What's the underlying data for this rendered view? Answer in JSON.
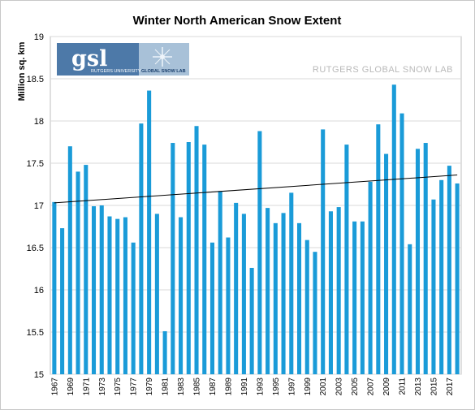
{
  "chart_data": {
    "type": "bar",
    "title": "Winter North American Snow Extent",
    "ylabel": "Million sq. km",
    "xlabel": "",
    "ylim": [
      15,
      19
    ],
    "yticks": [
      "15",
      "15.5",
      "16",
      "16.5",
      "17",
      "17.5",
      "18",
      "18.5",
      "19"
    ],
    "xtick_labels": [
      "1967",
      "1969",
      "1971",
      "1973",
      "1975",
      "1977",
      "1979",
      "1981",
      "1983",
      "1985",
      "1987",
      "1989",
      "1991",
      "1993",
      "1995",
      "1997",
      "1999",
      "2001",
      "2003",
      "2005",
      "2007",
      "2009",
      "2011",
      "2013",
      "2015",
      "2017"
    ],
    "categories": [
      "1967",
      "1968",
      "1969",
      "1970",
      "1971",
      "1972",
      "1973",
      "1974",
      "1975",
      "1976",
      "1977",
      "1978",
      "1979",
      "1980",
      "1981",
      "1982",
      "1983",
      "1984",
      "1985",
      "1986",
      "1987",
      "1988",
      "1989",
      "1990",
      "1991",
      "1992",
      "1993",
      "1994",
      "1995",
      "1996",
      "1997",
      "1998",
      "1999",
      "2000",
      "2001",
      "2002",
      "2003",
      "2004",
      "2005",
      "2006",
      "2007",
      "2008",
      "2009",
      "2010",
      "2011",
      "2012",
      "2013",
      "2014",
      "2015",
      "2016",
      "2017",
      "2018"
    ],
    "values": [
      17.04,
      16.73,
      17.7,
      17.4,
      17.48,
      16.99,
      17.0,
      16.87,
      16.84,
      16.86,
      16.56,
      17.97,
      18.36,
      16.9,
      15.51,
      17.74,
      16.86,
      17.75,
      17.94,
      17.72,
      16.56,
      17.17,
      16.62,
      17.03,
      16.9,
      16.26,
      17.88,
      16.97,
      16.79,
      16.91,
      17.15,
      16.79,
      16.59,
      16.45,
      17.9,
      16.93,
      16.98,
      17.72,
      16.81,
      16.81,
      17.28,
      17.96,
      17.61,
      18.43,
      18.09,
      16.54,
      17.67,
      17.74,
      17.07,
      17.3,
      17.47,
      17.26
    ],
    "trendline": {
      "start": 17.03,
      "end": 17.36
    },
    "grid": true,
    "bar_color": "#1a9bd8",
    "trend_color": "#000000"
  },
  "watermark": "RUTGERS GLOBAL SNOW LAB",
  "logo": {
    "text": "gsl",
    "line1": "RUTGERS UNIVERSITY",
    "line2": "GLOBAL SNOW LAB"
  }
}
